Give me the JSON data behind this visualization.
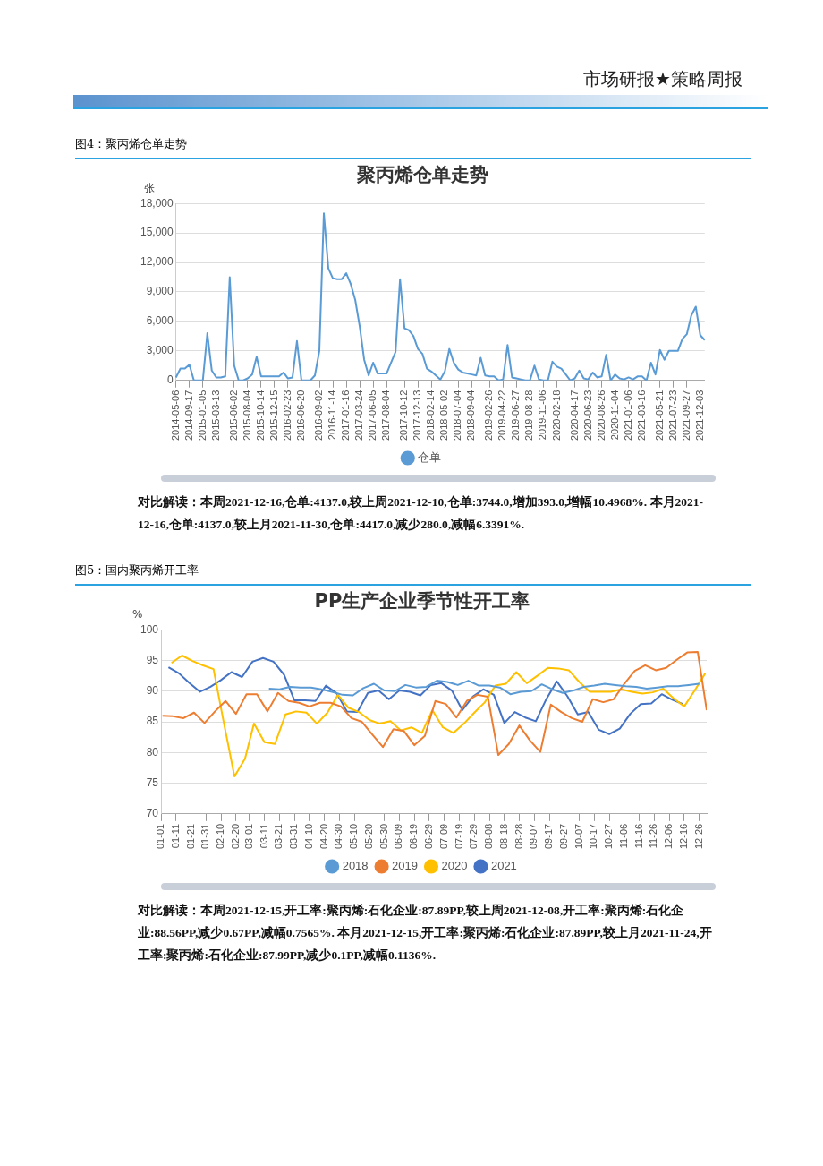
{
  "chart_data": [
    {
      "type": "line",
      "title": "聚丙烯仓单走势",
      "ylabel": "张",
      "annotations": [
        "市场研报★策略周报",
        "图4：聚丙烯仓单走势",
        "对比解读：本周2021-12-16,仓单:4137.0,较上周2021-12-10,仓单:3744.0,增加393.0,增幅10.4968%. 本月2021-12-16,仓单:4137.0,较上月2021-11-30,仓单:4417.0,减少280.0,减幅6.3391%."
      ],
      "categories": [
        "2014-05-06",
        null,
        null,
        "2014-09-17",
        null,
        null,
        "2015-01-05",
        null,
        null,
        "2015-03-13",
        null,
        null,
        null,
        "2015-06-02",
        null,
        null,
        "2015-08-04",
        null,
        null,
        "2015-10-14",
        null,
        null,
        "2015-12-15",
        null,
        null,
        "2016-02-23",
        null,
        null,
        "2016-06-20",
        null,
        null,
        null,
        "2016-09-02",
        null,
        null,
        "2016-11-14",
        null,
        null,
        "2017-01-16",
        null,
        null,
        "2017-03-24",
        null,
        null,
        "2017-06-05",
        null,
        null,
        "2017-08-04",
        null,
        null,
        null,
        "2017-10-12",
        null,
        null,
        "2017-12-13",
        null,
        null,
        "2018-02-14",
        null,
        null,
        "2018-05-02",
        null,
        null,
        "2018-07-04",
        null,
        null,
        "2018-09-04",
        null,
        null,
        null,
        "2019-02-26",
        null,
        null,
        "2019-04-22",
        null,
        null,
        "2019-06-27",
        null,
        null,
        "2019-08-28",
        null,
        null,
        "2019-11-06",
        null,
        null,
        "2020-02-18",
        null,
        null,
        null,
        "2020-04-17",
        null,
        null,
        "2020-06-23",
        null,
        null,
        "2020-08-26",
        null,
        null,
        "2020-11-04",
        null,
        null,
        "2021-01-06",
        null,
        null,
        "2021-03-16",
        null,
        null,
        null,
        "2021-05-21",
        null,
        null,
        "2021-07-23",
        null,
        null,
        "2021-09-27",
        null,
        null,
        "2021-12-03",
        null
      ],
      "series": [
        {
          "name": "仓单",
          "color": "#5b9bd5",
          "values": [
            300,
            1200,
            1200,
            1600,
            0,
            0,
            0,
            4800,
            1000,
            300,
            300,
            400,
            10500,
            1500,
            0,
            0,
            200,
            600,
            2400,
            400,
            400,
            400,
            400,
            400,
            800,
            200,
            300,
            4000,
            0,
            0,
            0,
            500,
            3000,
            17000,
            11400,
            10400,
            10300,
            10300,
            10900,
            9800,
            8200,
            5500,
            2100,
            500,
            1800,
            700,
            700,
            700,
            1800,
            2900,
            10300,
            5300,
            5100,
            4500,
            3200,
            2700,
            1200,
            900,
            500,
            100,
            900,
            3200,
            1800,
            1100,
            800,
            700,
            600,
            500,
            2300,
            500,
            400,
            400,
            0,
            100,
            3600,
            300,
            200,
            100,
            0,
            0,
            1500,
            100,
            0,
            0,
            1900,
            1400,
            1200,
            600,
            0,
            200,
            1000,
            200,
            100,
            800,
            300,
            400,
            2600,
            0,
            600,
            200,
            100,
            300,
            100,
            400,
            400,
            0,
            1800,
            600,
            3100,
            2100,
            3000,
            3000,
            3000,
            4200,
            4700,
            6600,
            7500,
            4600,
            4100
          ]
        }
      ],
      "ylim": [
        0,
        18000
      ],
      "yticks": [
        0,
        {
          "value": 3000,
          "label": "3,000"
        },
        {
          "value": 6000,
          "label": "6,000"
        },
        {
          "value": 9000,
          "label": "9,000"
        },
        {
          "value": 12000,
          "label": "12,000"
        },
        {
          "value": 15000,
          "label": "15,000"
        },
        {
          "value": 18000,
          "label": "18,000"
        }
      ],
      "grid": "y",
      "legend": "bottom",
      "marker": "none"
    },
    {
      "type": "line",
      "title": "PP生产企业季节性开工率",
      "ylabel": "%",
      "annotations": [
        "图5：国内聚丙烯开工率",
        "对比解读：本周2021-12-15,开工率:聚丙烯:石化企业:87.89PP,较上周2021-12-08,开工率:聚丙烯:石化企业:88.56PP,减少0.67PP,减幅0.7565%. 本月2021-12-15,开工率:聚丙烯:石化企业:87.89PP,较上月2021-11-24,开工率:聚丙烯:石化企业:87.99PP,减少0.1PP,减幅0.1136%."
      ],
      "series": [
        {
          "name": "2018",
          "color": "#5b9bd5",
          "x": [
            "--03-14",
            "--03-21",
            "--03-28",
            "--04-04",
            "--04-11",
            "--04-18",
            "--04-25",
            "--05-02",
            "--05-09",
            "--05-16",
            "--05-23",
            "--05-30",
            "--06-06",
            "--06-13",
            "--06-20",
            "--06-27",
            "--07-04",
            "--07-11",
            "--07-18",
            "--07-25",
            "--08-01",
            "--08-08",
            "--08-15",
            "--08-22",
            "--08-29",
            "--09-05",
            "--09-12",
            "--09-19",
            "--09-26",
            "--10-03",
            "--10-10",
            "--10-17",
            "--10-24",
            "--10-31",
            "--11-07",
            "--11-14",
            "--11-21",
            "--11-28",
            "--12-05",
            "--12-12",
            "--12-19",
            "--12-26"
          ],
          "values": [
            90.4,
            90.3,
            90.7,
            90.6,
            90.6,
            90.3,
            89.9,
            89.4,
            89.3,
            90.5,
            91.2,
            90.1,
            90.0,
            91.0,
            90.6,
            90.7,
            91.7,
            91.5,
            91.0,
            91.7,
            90.9,
            90.9,
            90.6,
            89.5,
            89.9,
            90.0,
            91.1,
            90.3,
            89.7,
            90.1,
            90.7,
            90.9,
            91.2,
            91.0,
            90.8,
            90.7,
            90.4,
            90.6,
            90.8,
            90.8,
            91.0,
            91.2
          ]
        },
        {
          "name": "2019",
          "color": "#ed7d31",
          "x": [
            "--01-02",
            "--01-09",
            "--01-16",
            "--01-23",
            "--01-30",
            "--02-06",
            "--02-13",
            "--02-20",
            "--02-27",
            "--03-06",
            "--03-13",
            "--03-20",
            "--03-27",
            "--04-03",
            "--04-10",
            "--04-17",
            "--04-24",
            "--05-01",
            "--05-08",
            "--05-15",
            "--05-22",
            "--05-29",
            "--06-05",
            "--06-12",
            "--06-19",
            "--06-26",
            "--07-03",
            "--07-10",
            "--07-17",
            "--07-24",
            "--07-31",
            "--08-07",
            "--08-14",
            "--08-21",
            "--08-28",
            "--09-04",
            "--09-11",
            "--09-18",
            "--09-25",
            "--10-02",
            "--10-09",
            "--10-16",
            "--10-23",
            "--10-30",
            "--11-06",
            "--11-13",
            "--11-20",
            "--11-27",
            "--12-04",
            "--12-11",
            "--12-18",
            "--12-25",
            "--12-31"
          ],
          "values": [
            86.0,
            85.9,
            85.6,
            86.5,
            84.8,
            86.7,
            88.4,
            86.3,
            89.5,
            89.5,
            86.7,
            89.7,
            88.4,
            88.1,
            87.5,
            88.1,
            88.1,
            87.5,
            85.6,
            85.0,
            82.9,
            80.9,
            83.8,
            83.5,
            81.2,
            82.7,
            88.4,
            87.9,
            85.7,
            88.4,
            89.4,
            89.1,
            79.6,
            81.4,
            84.4,
            82.0,
            80.1,
            87.8,
            86.6,
            85.6,
            85.0,
            88.7,
            88.2,
            88.7,
            91.2,
            93.3,
            94.2,
            93.4,
            93.8,
            95.1,
            96.3,
            96.4,
            86.9
          ]
        },
        {
          "name": "2020",
          "color": "#ffc000",
          "x": [
            "--01-08",
            "--01-15",
            "--01-22",
            "--01-29",
            "--02-05",
            "--02-12",
            "--02-19",
            "--02-26",
            "--03-04",
            "--03-11",
            "--03-18",
            "--03-25",
            "--04-01",
            "--04-08",
            "--04-15",
            "--04-22",
            "--04-29",
            "--05-06",
            "--05-13",
            "--05-20",
            "--05-27",
            "--06-03",
            "--06-10",
            "--06-17",
            "--06-24",
            "--07-01",
            "--07-08",
            "--07-15",
            "--07-22",
            "--07-29",
            "--08-05",
            "--08-12",
            "--08-19",
            "--08-26",
            "--09-02",
            "--09-09",
            "--09-16",
            "--09-23",
            "--09-30",
            "--10-07",
            "--10-14",
            "--10-21",
            "--10-28",
            "--11-04",
            "--11-11",
            "--11-18",
            "--11-25",
            "--12-02",
            "--12-09",
            "--12-16",
            "--12-23",
            "--12-30"
          ],
          "values": [
            94.6,
            95.8,
            94.9,
            94.2,
            93.6,
            84.7,
            76.1,
            79.0,
            84.7,
            81.7,
            81.4,
            86.2,
            86.7,
            86.5,
            84.7,
            86.5,
            89.4,
            87.3,
            86.6,
            85.3,
            84.7,
            85.1,
            83.6,
            84.1,
            83.2,
            86.9,
            84.1,
            83.2,
            84.7,
            86.5,
            88.2,
            90.9,
            91.2,
            93.1,
            91.3,
            92.5,
            93.8,
            93.7,
            93.4,
            91.5,
            89.9,
            89.9,
            89.9,
            90.3,
            89.9,
            89.6,
            89.8,
            90.4,
            88.8,
            87.5,
            90.1,
            92.9
          ]
        },
        {
          "name": "2021",
          "color": "#4472c4",
          "x": [
            "--01-06",
            "--01-13",
            "--01-20",
            "--01-27",
            "--02-03",
            "--02-10",
            "--02-17",
            "--02-24",
            "--03-03",
            "--03-10",
            "--03-17",
            "--03-24",
            "--03-31",
            "--04-07",
            "--04-14",
            "--04-21",
            "--04-28",
            "--05-05",
            "--05-12",
            "--05-19",
            "--05-26",
            "--06-02",
            "--06-09",
            "--06-16",
            "--06-23",
            "--06-30",
            "--07-07",
            "--07-14",
            "--07-21",
            "--07-28",
            "--08-04",
            "--08-11",
            "--08-18",
            "--08-25",
            "--09-01",
            "--09-08",
            "--09-15",
            "--09-22",
            "--09-29",
            "--10-06",
            "--10-13",
            "--10-20",
            "--10-27",
            "--11-03",
            "--11-10",
            "--11-17",
            "--11-24",
            "--12-01",
            "--12-08",
            "--12-15"
          ],
          "values": [
            93.9,
            92.9,
            91.3,
            89.9,
            90.7,
            91.8,
            93.1,
            92.3,
            94.8,
            95.4,
            94.8,
            92.7,
            88.5,
            88.5,
            88.4,
            90.9,
            89.7,
            86.7,
            86.6,
            89.7,
            90.1,
            88.7,
            90.1,
            89.9,
            89.3,
            91.0,
            91.3,
            90.1,
            86.9,
            89.1,
            90.3,
            89.4,
            84.8,
            86.6,
            85.7,
            85.1,
            88.7,
            91.6,
            89.2,
            86.2,
            86.6,
            83.7,
            83.0,
            83.9,
            86.3,
            87.9,
            88.0,
            89.5,
            88.6,
            87.9
          ]
        }
      ],
      "xlim": [
        "--01-01",
        "--12-31"
      ],
      "xticks": [
        {
          "value": "--01-01",
          "label": "01-01"
        },
        {
          "value": "--01-11",
          "label": "01-11"
        },
        {
          "value": "--01-21",
          "label": "01-21"
        },
        {
          "value": "--01-31",
          "label": "01-31"
        },
        {
          "value": "--02-10",
          "label": "02-10"
        },
        {
          "value": "--02-20",
          "label": "02-20"
        },
        {
          "value": "--03-01",
          "label": "03-01"
        },
        {
          "value": "--03-11",
          "label": "03-11"
        },
        {
          "value": "--03-21",
          "label": "03-21"
        },
        {
          "value": "--03-31",
          "label": "03-31"
        },
        {
          "value": "--04-10",
          "label": "04-10"
        },
        {
          "value": "--04-20",
          "label": "04-20"
        },
        {
          "value": "--04-30",
          "label": "04-30"
        },
        {
          "value": "--05-10",
          "label": "05-10"
        },
        {
          "value": "--05-20",
          "label": "05-20"
        },
        {
          "value": "--05-30",
          "label": "05-30"
        },
        {
          "value": "--06-09",
          "label": "06-09"
        },
        {
          "value": "--06-19",
          "label": "06-19"
        },
        {
          "value": "--06-29",
          "label": "06-29"
        },
        {
          "value": "--07-09",
          "label": "07-09"
        },
        {
          "value": "--07-19",
          "label": "07-19"
        },
        {
          "value": "--07-29",
          "label": "07-29"
        },
        {
          "value": "--08-08",
          "label": "08-08"
        },
        {
          "value": "--08-18",
          "label": "08-18"
        },
        {
          "value": "--08-28",
          "label": "08-28"
        },
        {
          "value": "--09-07",
          "label": "09-07"
        },
        {
          "value": "--09-17",
          "label": "09-17"
        },
        {
          "value": "--09-27",
          "label": "09-27"
        },
        {
          "value": "--10-07",
          "label": "10-07"
        },
        {
          "value": "--10-17",
          "label": "10-17"
        },
        {
          "value": "--10-27",
          "label": "10-27"
        },
        {
          "value": "--11-06",
          "label": "11-06"
        },
        {
          "value": "--11-16",
          "label": "11-16"
        },
        {
          "value": "--11-26",
          "label": "11-26"
        },
        {
          "value": "--12-06",
          "label": "12-06"
        },
        {
          "value": "--12-16",
          "label": "12-16"
        },
        {
          "value": "--12-26",
          "label": "12-26"
        }
      ],
      "ylim": [
        70,
        100
      ],
      "yticks": [
        70,
        75,
        80,
        85,
        90,
        95,
        100
      ],
      "grid": "y",
      "legend": "bottom",
      "marker": "none"
    }
  ]
}
